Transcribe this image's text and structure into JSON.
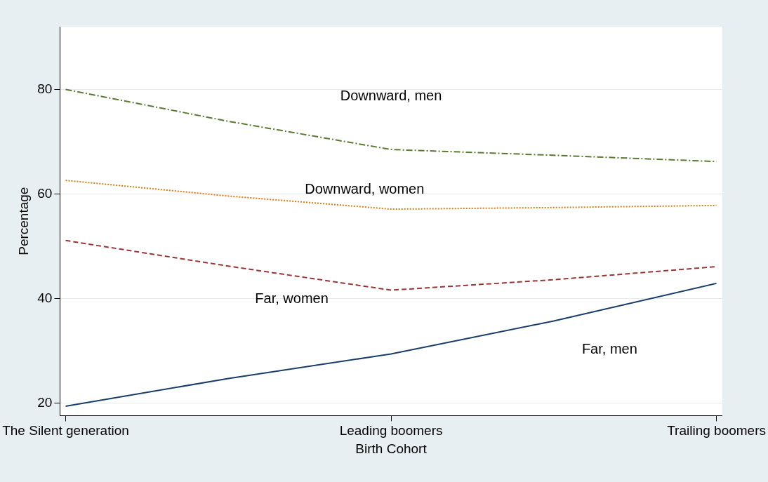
{
  "chart_data": {
    "type": "line",
    "xlabel": "Birth Cohort",
    "ylabel": "Percentage",
    "categories": [
      "The Silent generation",
      null,
      "Leading boomers",
      null,
      "Trailing boomers"
    ],
    "series": [
      {
        "color": "#5a7a32",
        "line_style": "dashdot",
        "values": [
          80,
          73.9,
          68.5,
          67.4,
          66.2
        ]
      },
      {
        "color": "#e07b0c",
        "line_style": "dotted",
        "values": [
          62.6,
          59.6,
          57.1,
          57.4,
          57.8
        ]
      },
      {
        "color": "#9b3535",
        "line_style": "dashed",
        "values": [
          51.1,
          46.2,
          41.6,
          43.6,
          46.1
        ]
      },
      {
        "color": "#1a3e6b",
        "line_style": "solid",
        "values": [
          19.4,
          24.7,
          29.4,
          35.7,
          42.9
        ]
      }
    ],
    "ylim": [
      17.6,
      92
    ],
    "yticks": [
      20,
      40,
      60,
      80
    ],
    "grid": "y",
    "legend": false,
    "marker": "none",
    "annotations": [
      "Downward, men",
      "Downward, women",
      "Far, women",
      "Far, men"
    ]
  }
}
